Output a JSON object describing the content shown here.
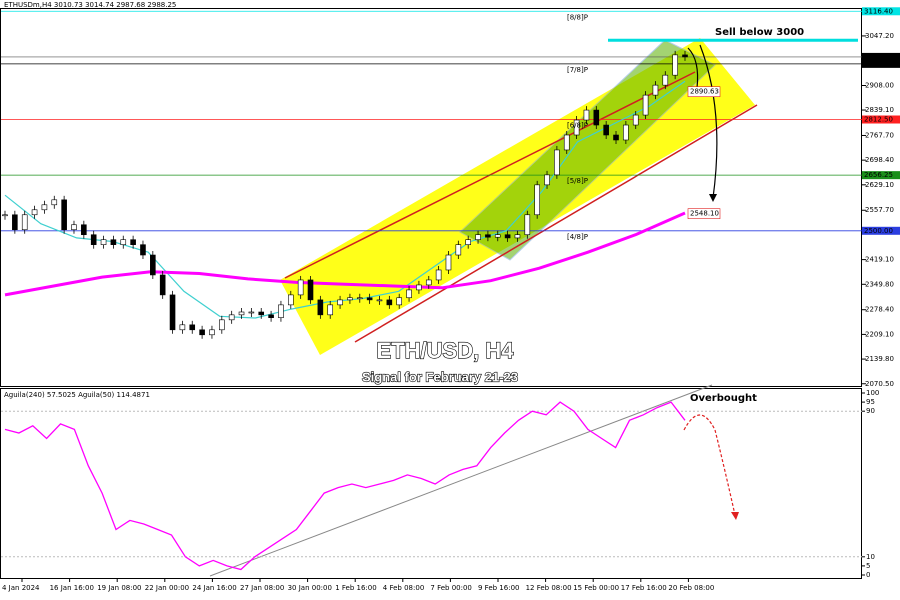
{
  "header": {
    "symbol_info": "ETHUSDm,H4  3010.73 3014.74 2987.68 2988.25"
  },
  "main_chart": {
    "type": "candlestick",
    "title": "ETH/USD, H4",
    "subtitle": "Signal for February 21-23",
    "annotation_sell": "Sell below  3000",
    "ylim": [
      2067,
      3120
    ],
    "yticks": [
      {
        "value": 3047.2,
        "label": "3047.20"
      },
      {
        "value": 2908,
        "label": "2908.00"
      },
      {
        "value": 2839.1,
        "label": "2839.10"
      },
      {
        "value": 2767.7,
        "label": "2767.70"
      },
      {
        "value": 2698.4,
        "label": "2698.40"
      },
      {
        "value": 2629.1,
        "label": "2629.10"
      },
      {
        "value": 2557.7,
        "label": "2557.70"
      },
      {
        "value": 2419.1,
        "label": "2419.10"
      },
      {
        "value": 2349.8,
        "label": "2349.80"
      },
      {
        "value": 2278.4,
        "label": "2278.40"
      },
      {
        "value": 2209.1,
        "label": "2209.10"
      },
      {
        "value": 2139.8,
        "label": "2139.80"
      },
      {
        "value": 2070.5,
        "label": "2070.50"
      }
    ],
    "levels": [
      {
        "name": "[8/8]P",
        "value": 3116.4,
        "label": "3116.40",
        "color": "#00e5e5"
      },
      {
        "name": "[7/8]P",
        "value": 2968.75,
        "label": "2968.75",
        "color": "#000000"
      },
      {
        "name": "[6/8]P",
        "value": 2812.5,
        "label": "2812.50",
        "color": "#ff2020"
      },
      {
        "name": "[5/8]P",
        "value": 2656.25,
        "label": "2656.25",
        "color": "#1a8f1a"
      },
      {
        "name": "[4/8]P",
        "value": 2500,
        "label": "2500.00",
        "color": "#2b3ee0"
      }
    ],
    "current_price": {
      "value": 2988.25,
      "label": "2988.25"
    },
    "targets": [
      {
        "value": 2890.63,
        "label": "2890.63"
      },
      {
        "value": 2548.1,
        "label": "2548.10"
      }
    ],
    "sell_line": 3035,
    "closes": [
      2545,
      2503,
      2545,
      2559,
      2573,
      2587,
      2503,
      2517,
      2489,
      2461,
      2475,
      2461,
      2475,
      2461,
      2432,
      2376,
      2320,
      2222,
      2236,
      2222,
      2208,
      2222,
      2250,
      2264,
      2272,
      2272,
      2264,
      2256,
      2292,
      2320,
      2362,
      2306,
      2264,
      2292,
      2306,
      2312,
      2312,
      2306,
      2306,
      2292,
      2312,
      2334,
      2348,
      2362,
      2390,
      2432,
      2461,
      2475,
      2489,
      2482,
      2489,
      2480,
      2489,
      2545,
      2629,
      2657,
      2727,
      2769,
      2811,
      2839,
      2797,
      2769,
      2755,
      2797,
      2825,
      2881,
      2909,
      2937,
      2994,
      2988.25
    ],
    "ma_slow": [
      2320,
      2345,
      2370,
      2385,
      2380,
      2365,
      2355,
      2350,
      2345,
      2340,
      2360,
      2395,
      2440,
      2490,
      2550
    ],
    "ma_fast": [
      2600,
      2520,
      2480,
      2470,
      2440,
      2330,
      2260,
      2255,
      2280,
      2300,
      2310,
      2330,
      2400,
      2470,
      2500,
      2610,
      2750,
      2800,
      2850,
      2920
    ],
    "ma_slow_color": "#ff00ff",
    "ma_fast_color": "#40d0d0"
  },
  "indicator": {
    "label": "Aguila(240) 57.5025 Aguila(50) 114.4871",
    "annotation": "Overbought",
    "ylim": [
      0,
      100
    ],
    "yticks": [
      100,
      95,
      90,
      10,
      5,
      0
    ],
    "values": [
      80,
      78,
      82,
      75,
      83,
      80,
      60,
      45,
      25,
      30,
      28,
      25,
      22,
      10,
      5,
      8,
      5,
      3,
      10,
      15,
      20,
      25,
      35,
      45,
      48,
      50,
      48,
      50,
      52,
      55,
      53,
      50,
      55,
      58,
      60,
      70,
      78,
      85,
      90,
      88,
      95,
      90,
      80,
      75,
      70,
      85,
      88,
      92,
      95,
      85
    ],
    "color": "#ff00ff"
  },
  "time_axis": {
    "labels": [
      "4 Jan 2024",
      "16 Jan 16:00",
      "19 Jan 08:00",
      "22 Jan 00:00",
      "24 Jan 16:00",
      "27 Jan 08:00",
      "30 Jan 00:00",
      "1 Feb 16:00",
      "4 Feb 08:00",
      "7 Feb 00:00",
      "9 Feb 16:00",
      "12 Feb 08:00",
      "15 Feb 00:00",
      "17 Feb 16:00",
      "20 Feb 08:00"
    ]
  }
}
